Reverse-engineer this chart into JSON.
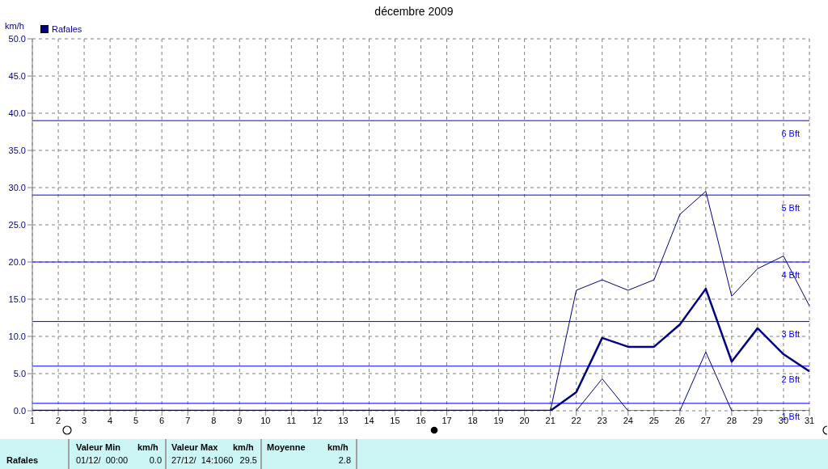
{
  "chart_data": {
    "type": "line",
    "title": "décembre 2009",
    "ylabel": "km/h",
    "legend": "top left",
    "grid": true,
    "line_style": "solid",
    "marker": "none",
    "x": [
      1,
      2,
      3,
      4,
      5,
      6,
      7,
      8,
      9,
      10,
      11,
      12,
      13,
      14,
      15,
      16,
      17,
      18,
      19,
      20,
      21,
      22,
      23,
      24,
      25,
      26,
      27,
      28,
      29,
      30,
      31
    ],
    "xlim": [
      1,
      31
    ],
    "xticks": [
      1,
      2,
      3,
      4,
      5,
      6,
      7,
      8,
      9,
      10,
      11,
      12,
      13,
      14,
      15,
      16,
      17,
      18,
      19,
      20,
      21,
      22,
      23,
      24,
      25,
      26,
      27,
      28,
      29,
      30,
      31
    ],
    "ylim": [
      0,
      50
    ],
    "yticks": [
      {
        "value": 0,
        "label": "0.0"
      },
      {
        "value": 5,
        "label": "5.0"
      },
      {
        "value": 10,
        "label": "10.0"
      },
      {
        "value": 15,
        "label": "15.0"
      },
      {
        "value": 20,
        "label": "20.0"
      },
      {
        "value": 25,
        "label": "25.0"
      },
      {
        "value": 30,
        "label": "30.0"
      },
      {
        "value": 35,
        "label": "35.0"
      },
      {
        "value": 40,
        "label": "40.0"
      },
      {
        "value": 45,
        "label": "45.0"
      },
      {
        "value": 50,
        "label": "50.0"
      }
    ],
    "series": [
      {
        "color": "#000080",
        "values": [
          null,
          null,
          null,
          null,
          null,
          null,
          null,
          null,
          null,
          null,
          null,
          null,
          null,
          null,
          null,
          null,
          null,
          null,
          null,
          null,
          0,
          16.2,
          17.6,
          16.2,
          17.6,
          26.4,
          29.5,
          15.4,
          19.1,
          20.8,
          14.1
        ]
      },
      {
        "color": "#000080",
        "values": [
          null,
          null,
          null,
          null,
          null,
          null,
          null,
          null,
          null,
          null,
          null,
          null,
          null,
          null,
          null,
          null,
          null,
          null,
          null,
          null,
          null,
          0,
          4.3,
          0,
          0,
          0,
          7.9,
          0,
          0,
          0,
          0
        ]
      },
      {
        "name": "Rafales",
        "color": "#000080",
        "values": [
          0,
          0,
          0,
          0,
          0,
          0,
          0,
          0,
          0,
          0,
          0,
          0,
          0,
          0,
          0,
          0,
          0,
          0,
          0,
          0,
          0,
          2.5,
          9.8,
          8.6,
          8.6,
          11.6,
          16.4,
          6.6,
          11.1,
          7.6,
          5.3
        ]
      }
    ],
    "ref_lines": [
      {
        "axis": "y",
        "value": 1,
        "label": "1 Bft",
        "color": "#0000ff"
      },
      {
        "axis": "y",
        "value": 6,
        "label": "2 Bft",
        "color": "#0000ff"
      },
      {
        "axis": "y",
        "value": 12,
        "label": "3 Bft",
        "color": "#0000ff"
      },
      {
        "axis": "y",
        "value": 20,
        "label": "4 Bft",
        "color": "#0000ff"
      },
      {
        "axis": "y",
        "value": 29,
        "label": "5 Bft",
        "color": "#0000ff"
      },
      {
        "axis": "y",
        "value": 39,
        "label": "6 Bft",
        "color": "#0000ff"
      }
    ],
    "annotations": [
      "Rafales",
      "Valeur Min",
      "km/h",
      "01/12/  00:00",
      "0.0",
      "Valeur Max",
      "km/h",
      "27/12/  14:1060",
      "29.5",
      "Moyenne",
      "km/h",
      "2.8"
    ]
  }
}
